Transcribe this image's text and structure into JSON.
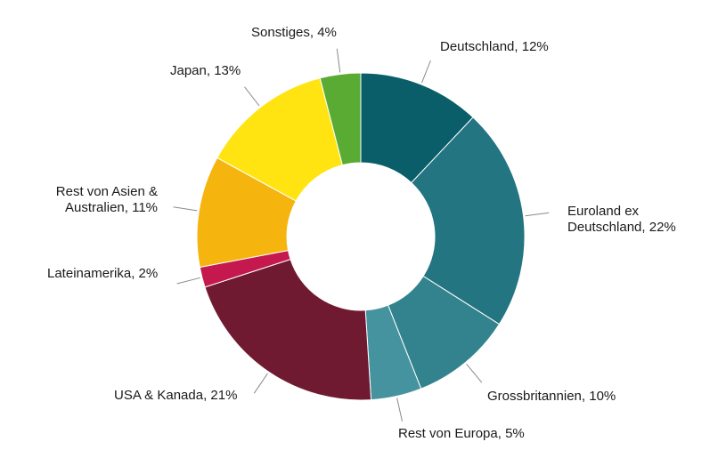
{
  "page": {
    "background": "#FFFFFF"
  },
  "chart_data": {
    "type": "pie",
    "variant": "donut",
    "title": "",
    "legend": "none",
    "labeling": "outside labels with gray leader lines, format 'Name, N%'",
    "start_angle_deg": 0,
    "direction": "clockwise",
    "inner_radius_ratio": 0.45,
    "leader_line_color": "#8A8A8A",
    "label_text_color": "#1A1A1A",
    "segments": [
      {
        "id": "deutschland",
        "label": "Deutschland",
        "value": 12,
        "color": "#095E69",
        "display": "Deutschland, 12%"
      },
      {
        "id": "euroland-ex-deutschland",
        "label": "Euroland ex Deutschland",
        "value": 22,
        "color": "#227581",
        "display": "Euroland ex Deutschland, 22%"
      },
      {
        "id": "grossbritannien",
        "label": "Grossbritannien",
        "value": 10,
        "color": "#33838F",
        "display": "Grossbritannien, 10%"
      },
      {
        "id": "rest-von-europa",
        "label": "Rest von Europa",
        "value": 5,
        "color": "#45939F",
        "display": "Rest von Europa, 5%"
      },
      {
        "id": "usa-kanada",
        "label": "USA & Kanada",
        "value": 21,
        "color": "#701A31",
        "display": "USA & Kanada, 21%"
      },
      {
        "id": "lateinamerika",
        "label": "Lateinamerika",
        "value": 2,
        "color": "#C5184F",
        "display": "Lateinamerika, 2%"
      },
      {
        "id": "rest-von-asien-australien",
        "label": "Rest von Asien & Australien",
        "value": 11,
        "color": "#F5B40E",
        "display": "Rest von Asien & Australien, 11%"
      },
      {
        "id": "japan",
        "label": "Japan",
        "value": 13,
        "color": "#FFE412",
        "display": "Japan, 13%"
      },
      {
        "id": "sonstiges",
        "label": "Sonstiges",
        "value": 4,
        "color": "#5AAB33",
        "display": "Sonstiges, 4%"
      }
    ]
  }
}
